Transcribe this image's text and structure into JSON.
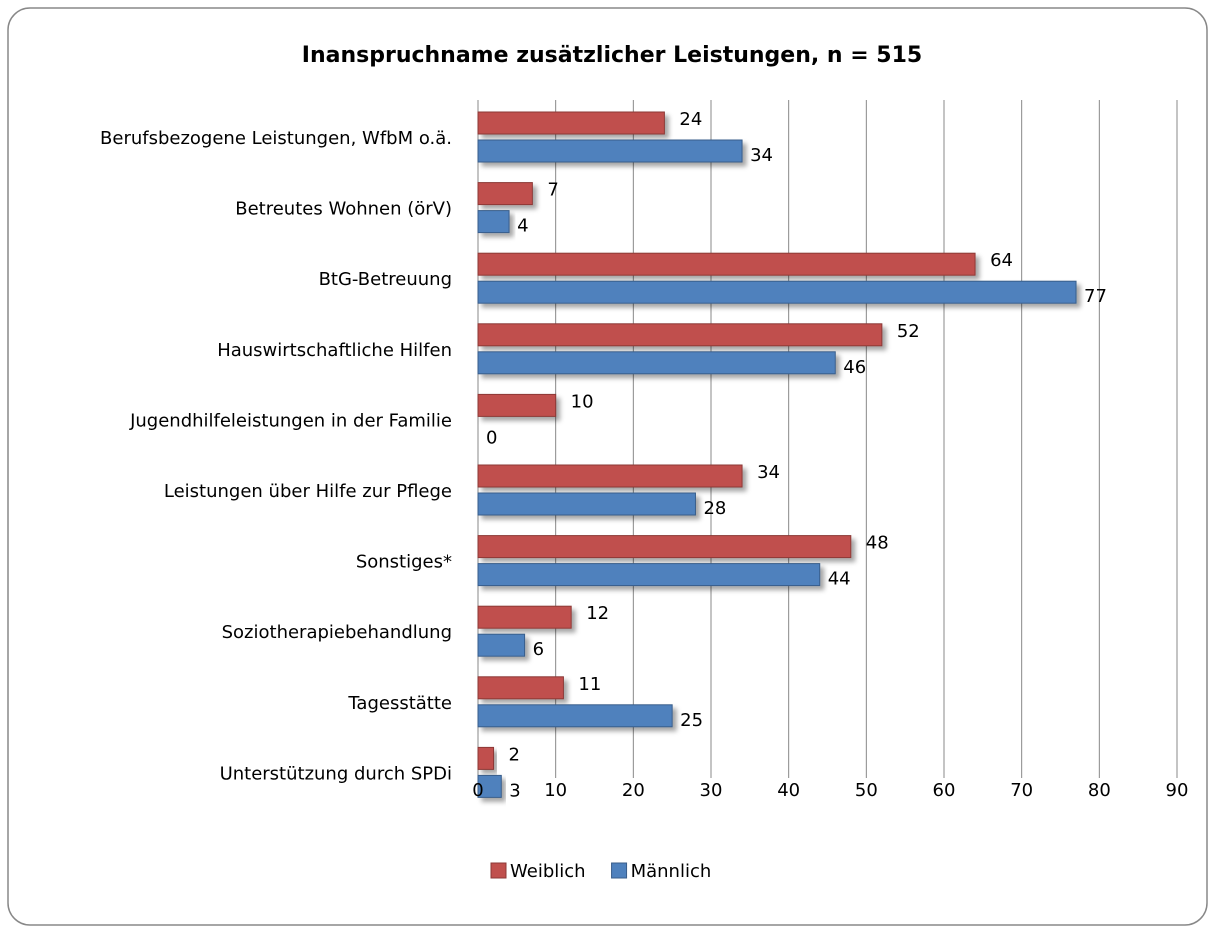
{
  "chart_data": {
    "type": "bar",
    "orientation": "horizontal",
    "title": "Inanspruchname zusätzlicher Leistungen, n = 515",
    "categories": [
      "Berufsbezogene Leistungen, WfbM o.ä.",
      "Betreutes Wohnen (örV)",
      "BtG-Betreuung",
      "Hauswirtschaftliche Hilfen",
      "Jugendhilfeleistungen in der Familie",
      "Leistungen über Hilfe zur Pflege",
      "Sonstiges*",
      "Soziotherapiebehandlung",
      "Tagesstätte",
      "Unterstützung durch SPDi"
    ],
    "series": [
      {
        "name": "Weiblich",
        "color": "#c0504d",
        "values": [
          24,
          7,
          64,
          52,
          10,
          34,
          48,
          12,
          11,
          2
        ]
      },
      {
        "name": "Männlich",
        "color": "#4f81bd",
        "values": [
          34,
          4,
          77,
          46,
          0,
          28,
          44,
          6,
          25,
          3
        ]
      }
    ],
    "xlim": [
      0,
      90
    ],
    "xticks": [
      0,
      10,
      20,
      30,
      40,
      50,
      60,
      70,
      80,
      90
    ],
    "grid": true,
    "legend": "bottom"
  }
}
